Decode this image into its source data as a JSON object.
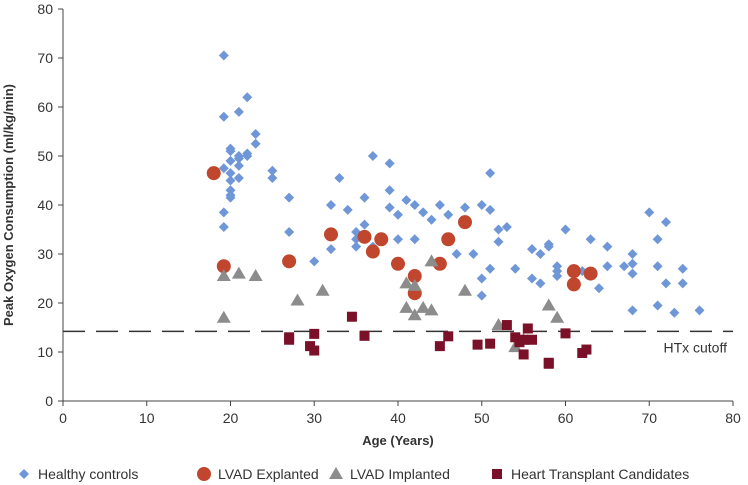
{
  "chart_data": {
    "type": "scatter",
    "xlabel": "Age (Years)",
    "ylabel": "Peak Oxygen Consumption (ml/kg/min)",
    "xlim": [
      0,
      80
    ],
    "ylim": [
      0,
      80
    ],
    "xticks": [
      0,
      10,
      20,
      30,
      40,
      50,
      60,
      70,
      80
    ],
    "yticks": [
      0,
      10,
      20,
      30,
      40,
      50,
      60,
      70,
      80
    ],
    "grid": false,
    "legend_position": "bottom",
    "reference_line": {
      "label": "HTx cutoff",
      "y": 14.2
    },
    "series": [
      {
        "name": "Healthy controls",
        "marker": "diamond",
        "color": "#6f97d8",
        "points": [
          [
            19.2,
            70.5
          ],
          [
            19.2,
            58
          ],
          [
            21,
            59
          ],
          [
            22,
            62
          ],
          [
            23,
            54.5
          ],
          [
            23,
            52.5
          ],
          [
            20,
            51.5
          ],
          [
            20,
            51
          ],
          [
            21,
            50
          ],
          [
            21,
            49.5
          ],
          [
            22,
            50.5
          ],
          [
            22,
            50
          ],
          [
            20,
            49
          ],
          [
            21,
            48
          ],
          [
            20,
            46.5
          ],
          [
            19.2,
            47.5
          ],
          [
            20,
            45
          ],
          [
            21,
            45.5
          ],
          [
            20,
            43
          ],
          [
            20,
            42
          ],
          [
            20,
            41.5
          ],
          [
            19.2,
            38.5
          ],
          [
            19.2,
            35.5
          ],
          [
            25,
            47
          ],
          [
            25,
            45.5
          ],
          [
            27,
            41.5
          ],
          [
            27,
            34.5
          ],
          [
            30,
            28.5
          ],
          [
            32,
            40
          ],
          [
            32,
            31
          ],
          [
            33,
            45.5
          ],
          [
            34,
            39
          ],
          [
            35,
            34.5
          ],
          [
            35,
            33
          ],
          [
            35,
            31.5
          ],
          [
            36,
            41.5
          ],
          [
            36,
            36
          ],
          [
            37,
            50
          ],
          [
            37,
            31.5
          ],
          [
            38,
            33
          ],
          [
            39,
            48.5
          ],
          [
            39,
            43
          ],
          [
            39,
            39.5
          ],
          [
            40,
            38
          ],
          [
            40,
            33
          ],
          [
            41,
            41
          ],
          [
            42,
            40
          ],
          [
            42,
            33
          ],
          [
            43,
            38.5
          ],
          [
            44,
            37
          ],
          [
            45,
            40
          ],
          [
            46,
            38
          ],
          [
            47,
            30
          ],
          [
            48,
            39.5
          ],
          [
            49,
            30
          ],
          [
            50,
            40
          ],
          [
            50,
            25
          ],
          [
            50,
            21.5
          ],
          [
            51,
            46.5
          ],
          [
            51,
            39
          ],
          [
            51,
            27
          ],
          [
            52,
            35
          ],
          [
            52,
            32.5
          ],
          [
            53,
            35.5
          ],
          [
            54,
            27
          ],
          [
            56,
            31
          ],
          [
            56,
            25
          ],
          [
            57,
            30
          ],
          [
            57,
            24
          ],
          [
            58,
            32
          ],
          [
            58,
            31.5
          ],
          [
            59,
            27.5
          ],
          [
            59,
            26.5
          ],
          [
            59,
            25.5
          ],
          [
            60,
            35
          ],
          [
            61,
            27
          ],
          [
            62,
            26.5
          ],
          [
            63,
            33
          ],
          [
            64,
            23
          ],
          [
            65,
            31.5
          ],
          [
            65,
            27.5
          ],
          [
            67,
            27.5
          ],
          [
            68,
            30
          ],
          [
            68,
            28
          ],
          [
            68,
            26
          ],
          [
            68,
            18.5
          ],
          [
            70,
            38.5
          ],
          [
            71,
            33
          ],
          [
            71,
            27.5
          ],
          [
            71,
            19.5
          ],
          [
            72,
            36.5
          ],
          [
            72,
            24
          ],
          [
            73,
            18
          ],
          [
            74,
            27
          ],
          [
            74,
            24
          ],
          [
            76,
            18.5
          ]
        ]
      },
      {
        "name": "LVAD Explanted",
        "marker": "circle",
        "color": "#c0462e",
        "points": [
          [
            18,
            46.5
          ],
          [
            19.2,
            27.5
          ],
          [
            27,
            28.5
          ],
          [
            32,
            34
          ],
          [
            36,
            33.5
          ],
          [
            37,
            30.5
          ],
          [
            38,
            33
          ],
          [
            40,
            28
          ],
          [
            42,
            25.5
          ],
          [
            42,
            22
          ],
          [
            45,
            28
          ],
          [
            46,
            33
          ],
          [
            48,
            36.5
          ],
          [
            61,
            26.5
          ],
          [
            61,
            23.8
          ],
          [
            63,
            26
          ]
        ]
      },
      {
        "name": "LVAD Implanted",
        "marker": "triangle",
        "color": "#8c8c8c",
        "points": [
          [
            19.2,
            25.5
          ],
          [
            19.2,
            17
          ],
          [
            21,
            26
          ],
          [
            23,
            25.5
          ],
          [
            28,
            20.5
          ],
          [
            31,
            22.5
          ],
          [
            41,
            19
          ],
          [
            41,
            24
          ],
          [
            42,
            17.5
          ],
          [
            42,
            23.5
          ],
          [
            43,
            19
          ],
          [
            44,
            18.5
          ],
          [
            44,
            28.5
          ],
          [
            48,
            22.5
          ],
          [
            52,
            15.5
          ],
          [
            54,
            11
          ],
          [
            55,
            12.5
          ],
          [
            58,
            19.5
          ],
          [
            59,
            17
          ]
        ]
      },
      {
        "name": "Heart Transplant Candidates",
        "marker": "square",
        "color": "#7b1029",
        "points": [
          [
            27,
            12.5
          ],
          [
            27,
            13
          ],
          [
            29.5,
            11.2
          ],
          [
            30,
            10.3
          ],
          [
            30,
            13.7
          ],
          [
            34.5,
            17.2
          ],
          [
            36,
            13.3
          ],
          [
            45,
            11.2
          ],
          [
            46,
            13.2
          ],
          [
            49.5,
            11.5
          ],
          [
            51,
            11.7
          ],
          [
            53,
            15.5
          ],
          [
            54,
            13
          ],
          [
            54.5,
            12
          ],
          [
            55,
            12.5
          ],
          [
            55,
            9.5
          ],
          [
            55.5,
            14.8
          ],
          [
            56,
            12.5
          ],
          [
            58,
            7.8
          ],
          [
            58,
            7.6
          ],
          [
            60,
            13.8
          ],
          [
            62,
            9.8
          ],
          [
            62.5,
            10.5
          ]
        ]
      }
    ]
  }
}
